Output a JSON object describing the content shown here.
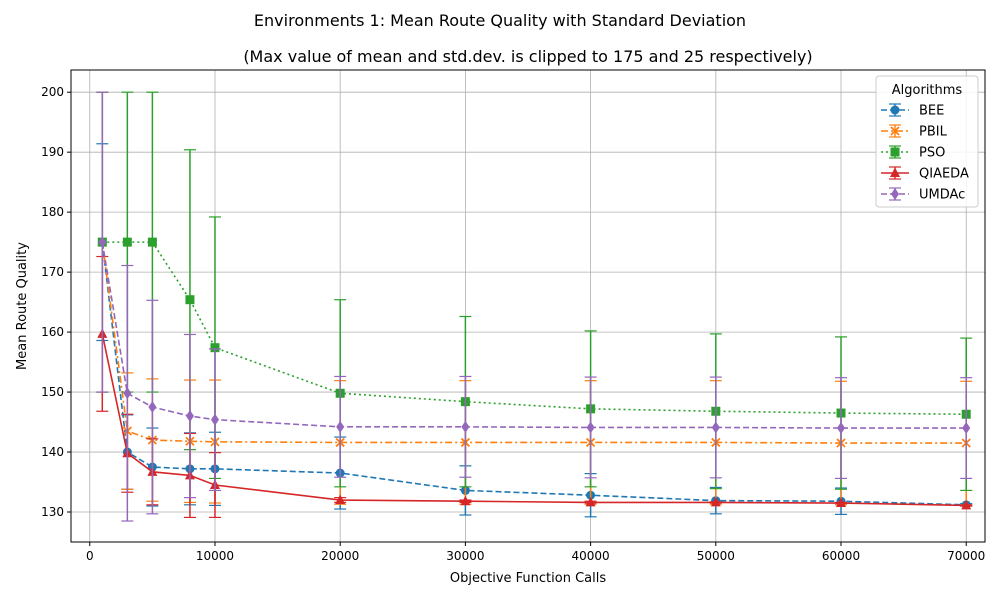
{
  "chart_data": {
    "type": "line",
    "title": "Environments 1: Mean Route Quality with Standard Deviation",
    "subtitle": "(Max value of mean and std.dev. is clipped to 175 and 25 respectively)",
    "xlabel": "Objective Function Calls",
    "ylabel": "Mean Route Quality",
    "xlim": [
      -1500,
      71500
    ],
    "ylim": [
      125,
      203.7
    ],
    "x_ticks": [
      0,
      10000,
      20000,
      30000,
      40000,
      50000,
      60000,
      70000
    ],
    "y_ticks": [
      130,
      140,
      150,
      160,
      170,
      180,
      190,
      200
    ],
    "grid": true,
    "legend_title": "Algorithms",
    "legend_position": "top-right",
    "x": [
      1000,
      3000,
      5000,
      8000,
      10000,
      20000,
      30000,
      40000,
      50000,
      60000,
      70000
    ],
    "series": [
      {
        "name": "BEE",
        "color": "#1f77b4",
        "linestyle": "dashed",
        "marker": "circle",
        "values": [
          175,
          140.0,
          137.5,
          137.2,
          137.2,
          136.5,
          133.6,
          132.8,
          131.9,
          131.8,
          131.2
        ],
        "yerr_low": [
          158.6,
          133.8,
          131.0,
          131.2,
          131.1,
          130.5,
          129.5,
          129.2,
          129.7,
          129.6,
          131.0
        ],
        "yerr_high": [
          191.4,
          146.2,
          144.0,
          143.2,
          143.3,
          142.5,
          137.7,
          136.4,
          134.1,
          134.0,
          131.4
        ]
      },
      {
        "name": "PBIL",
        "color": "#ff7f0e",
        "linestyle": "dashdot",
        "marker": "x",
        "values": [
          175,
          143.5,
          142.0,
          141.8,
          141.7,
          141.6,
          141.6,
          141.6,
          141.6,
          141.5,
          141.5
        ],
        "yerr_low": [
          150.0,
          133.8,
          131.8,
          131.6,
          131.5,
          131.3,
          131.3,
          131.3,
          131.3,
          131.2,
          131.2
        ],
        "yerr_high": [
          200.0,
          153.2,
          152.2,
          152.0,
          152.0,
          151.9,
          151.9,
          151.9,
          151.9,
          151.8,
          151.8
        ]
      },
      {
        "name": "PSO",
        "color": "#2ca02c",
        "linestyle": "dotted",
        "marker": "square",
        "values": [
          175,
          175,
          175,
          165.4,
          157.4,
          149.8,
          148.4,
          147.2,
          146.8,
          146.5,
          146.3
        ],
        "yerr_low": [
          150.0,
          150.0,
          150.0,
          140.4,
          135.6,
          134.2,
          134.2,
          134.2,
          133.9,
          133.8,
          133.6
        ],
        "yerr_high": [
          200.0,
          200.0,
          200.0,
          190.4,
          179.2,
          165.4,
          162.6,
          160.2,
          159.7,
          159.2,
          159.0
        ]
      },
      {
        "name": "QIAEDA",
        "color": "#d62728",
        "linestyle": "solid",
        "marker": "triangle",
        "values": [
          159.7,
          139.8,
          136.7,
          136.1,
          134.5,
          132.0,
          131.8,
          131.6,
          131.6,
          131.5,
          131.1
        ],
        "yerr_low": [
          146.8,
          133.3,
          131.2,
          129.1,
          129.1,
          131.6,
          131.6,
          131.5,
          131.5,
          131.4,
          131.0
        ],
        "yerr_high": [
          172.6,
          146.3,
          142.2,
          143.1,
          139.9,
          132.4,
          132.0,
          131.8,
          131.7,
          131.6,
          131.2
        ]
      },
      {
        "name": "UMDAc",
        "color": "#9467bd",
        "linestyle": "dashed",
        "marker": "diamond",
        "values": [
          175,
          149.8,
          147.5,
          146.0,
          145.4,
          144.2,
          144.2,
          144.1,
          144.1,
          144.0,
          144.0
        ],
        "yerr_low": [
          150.0,
          128.5,
          129.7,
          132.4,
          133.6,
          135.8,
          135.8,
          135.7,
          135.7,
          135.6,
          135.6
        ],
        "yerr_high": [
          200.0,
          171.1,
          165.3,
          159.6,
          157.2,
          152.6,
          152.6,
          152.5,
          152.5,
          152.4,
          152.4
        ]
      }
    ]
  }
}
